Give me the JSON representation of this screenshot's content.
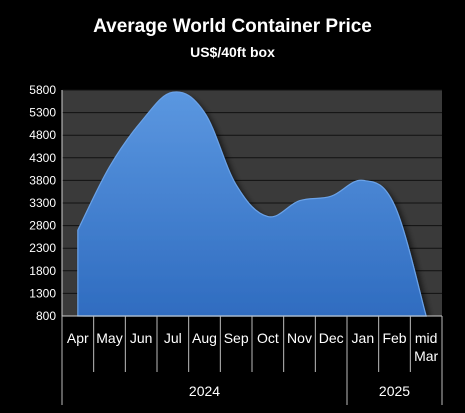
{
  "chart_data": {
    "type": "area",
    "title": "Average World Container Price",
    "subtitle": "US$/40ft box",
    "xlabel": "",
    "ylabel": "",
    "categories": [
      "Apr",
      "May",
      "Jun",
      "Jul",
      "Aug",
      "Sep",
      "Oct",
      "Nov",
      "Dec",
      "Jan",
      "Feb",
      "mid Mar"
    ],
    "category_lines": [
      [
        "Apr"
      ],
      [
        "May"
      ],
      [
        "Jun"
      ],
      [
        "Jul"
      ],
      [
        "Aug"
      ],
      [
        "Sep"
      ],
      [
        "Oct"
      ],
      [
        "Nov"
      ],
      [
        "Dec"
      ],
      [
        "Jan"
      ],
      [
        "Feb"
      ],
      [
        "mid",
        "Mar"
      ]
    ],
    "years": [
      {
        "label": "2024",
        "start": 0,
        "end": 8
      },
      {
        "label": "2025",
        "start": 9,
        "end": 11
      }
    ],
    "values": [
      2700,
      4100,
      5100,
      5750,
      5300,
      3700,
      3000,
      3350,
      3450,
      3800,
      3250,
      800
    ],
    "ylim": [
      800,
      5800
    ],
    "yticks": [
      800,
      1300,
      1800,
      2300,
      2800,
      3300,
      3800,
      4300,
      4800,
      5300,
      5800
    ],
    "grid": true,
    "legend": "none",
    "colors": {
      "background": "#000000",
      "plot_area": "#3a3a3a",
      "grid": "#111111",
      "area_fill": "#3f7fd0",
      "area_edge": "#6aa2e8",
      "text": "#ffffff"
    }
  }
}
